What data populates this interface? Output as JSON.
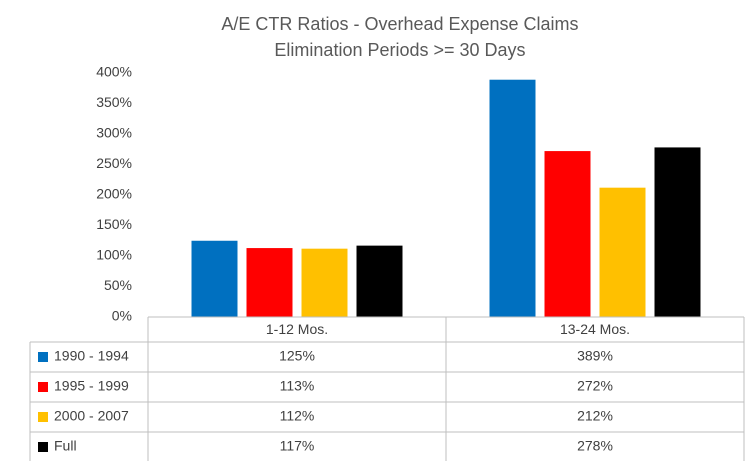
{
  "chart_data": {
    "type": "bar",
    "title": "A/E CTR Ratios - Overhead Expense Claims",
    "subtitle": "Elimination Periods >= 30 Days",
    "categories": [
      "1-12 Mos.",
      "13-24 Mos."
    ],
    "series": [
      {
        "name": "1990 - 1994",
        "color": "#0070c0",
        "values": [
          125,
          389
        ],
        "value_labels": [
          "125%",
          "389%"
        ]
      },
      {
        "name": "1995 - 1999",
        "color": "#ff0000",
        "values": [
          113,
          272
        ],
        "value_labels": [
          "113%",
          "272%"
        ]
      },
      {
        "name": "2000 - 2007",
        "color": "#ffc000",
        "values": [
          112,
          212
        ],
        "value_labels": [
          "112%",
          "212%"
        ]
      },
      {
        "name": "Full",
        "color": "#000000",
        "values": [
          117,
          278
        ],
        "value_labels": [
          "117%",
          "278%"
        ]
      }
    ],
    "ylim": [
      0,
      400
    ],
    "yticks": [
      {
        "value": 0,
        "label": "0%"
      },
      {
        "value": 50,
        "label": "50%"
      },
      {
        "value": 100,
        "label": "100%"
      },
      {
        "value": 150,
        "label": "150%"
      },
      {
        "value": 200,
        "label": "200%"
      },
      {
        "value": 250,
        "label": "250%"
      },
      {
        "value": 300,
        "label": "300%"
      },
      {
        "value": 350,
        "label": "350%"
      },
      {
        "value": 400,
        "label": "400%"
      }
    ],
    "grid": false
  }
}
